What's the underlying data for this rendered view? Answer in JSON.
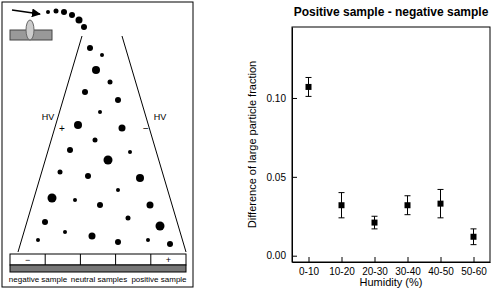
{
  "chart_data": {
    "type": "scatter",
    "title": "Positive sample - negative sample",
    "x_label": "Humidity (%)",
    "y_label": "Difference of large particle fraction",
    "categories": [
      "0-10",
      "10-20",
      "20-30",
      "30-40",
      "40-50",
      "50-60"
    ],
    "values": [
      0.107,
      0.032,
      0.021,
      0.032,
      0.033,
      0.012
    ],
    "errors": [
      0.006,
      0.008,
      0.004,
      0.006,
      0.009,
      0.005
    ],
    "color": "#000000",
    "marker": "square",
    "ylim": [
      -0.004,
      0.145
    ],
    "yticks": [
      {
        "value": 0,
        "label": "0.00"
      },
      {
        "value": 0.05,
        "label": "0.05"
      },
      {
        "value": 0.1,
        "label": "0.10"
      }
    ],
    "grid": false
  },
  "diagram": {
    "left_electrode": {
      "label": "HV",
      "sign": "+"
    },
    "right_electrode": {
      "label": "HV",
      "sign": "−"
    },
    "cell_signs": {
      "first": "−",
      "last": "+"
    },
    "samples": [
      "negative sample",
      "neutral samples",
      "positive sample"
    ]
  }
}
